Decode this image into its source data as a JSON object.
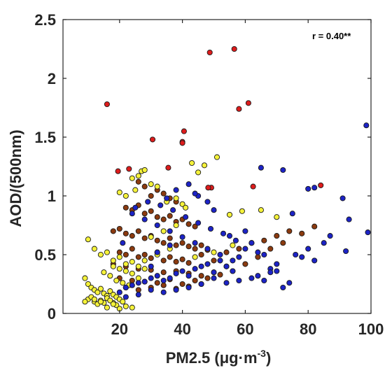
{
  "chart_data": {
    "type": "scatter",
    "title": "",
    "xlabel": "PM2.5 (μg·m",
    "xlabel_sup": "-3",
    "xlabel_close": ")",
    "ylabel": "AOD/(500nm)",
    "annotation": "r = 0.40**",
    "xlim": [
      2,
      100
    ],
    "ylim": [
      0,
      2.5
    ],
    "x_ticks": [
      20,
      40,
      60,
      80,
      100
    ],
    "x_tick_labels": [
      "20",
      "40",
      "60",
      "80",
      "100"
    ],
    "y_ticks": [
      0,
      0.5,
      1,
      1.5,
      2,
      2.5
    ],
    "y_tick_labels": [
      "0",
      "0.5",
      "1",
      "1.5",
      "2",
      "2.5"
    ],
    "grid": false,
    "legend": "none",
    "colors": {
      "red": "#dd1c1c",
      "brown": "#8b3a0f",
      "yellow": "#f5f23a",
      "blue": "#1c23c6",
      "outline": "#1a1a1a",
      "axis": "#262626"
    },
    "series": [
      {
        "color_key": "red",
        "x": [
          48.7,
          56.5,
          16,
          61,
          58,
          30.5,
          40.5,
          40,
          40,
          49.2,
          48.2,
          62.5,
          84,
          19.5,
          23,
          35.5
        ],
        "y": [
          2.22,
          2.25,
          1.78,
          1.79,
          1.74,
          1.48,
          1.55,
          1.46,
          1.45,
          1.07,
          1.07,
          1.08,
          1.09,
          1.21,
          1.23,
          1.24
        ]
      },
      {
        "color_key": "brown",
        "x": [
          26,
          28,
          30,
          32,
          34,
          36,
          38,
          22,
          24,
          26,
          28,
          30,
          32,
          34,
          36,
          38,
          40,
          42,
          44,
          18,
          20,
          22,
          24,
          26,
          28,
          30,
          32,
          34,
          36,
          38,
          40,
          42,
          44,
          46,
          48,
          20,
          22,
          24,
          26,
          28,
          30,
          32,
          34,
          36,
          38,
          40,
          42,
          46,
          50,
          54,
          58,
          62,
          66,
          70,
          74,
          78,
          82,
          18,
          22,
          26,
          30,
          34,
          38,
          42,
          46,
          50,
          54,
          60,
          64,
          68,
          72,
          20,
          24,
          28,
          32,
          36,
          40,
          44,
          48,
          52,
          56,
          22,
          26,
          30,
          34,
          38,
          42,
          46
        ],
        "y": [
          1.12,
          1.08,
          1.0,
          1.05,
          1.02,
          0.98,
          0.95,
          0.9,
          0.88,
          0.92,
          0.85,
          0.87,
          0.82,
          0.8,
          0.83,
          0.78,
          0.8,
          0.76,
          0.74,
          0.7,
          0.72,
          0.68,
          0.66,
          0.7,
          0.64,
          0.66,
          0.62,
          0.6,
          0.64,
          0.58,
          0.6,
          0.57,
          0.55,
          0.58,
          0.54,
          0.52,
          0.5,
          0.55,
          0.48,
          0.5,
          0.47,
          0.52,
          0.45,
          0.48,
          0.44,
          0.46,
          0.43,
          0.5,
          0.45,
          0.52,
          0.55,
          0.6,
          0.62,
          0.66,
          0.7,
          0.68,
          0.74,
          0.42,
          0.4,
          0.38,
          0.37,
          0.35,
          0.36,
          0.34,
          0.32,
          0.35,
          0.4,
          0.42,
          0.48,
          0.55,
          0.6,
          0.3,
          0.28,
          0.27,
          0.26,
          0.29,
          0.25,
          0.28,
          0.3,
          0.33,
          0.36,
          0.22,
          0.2,
          0.22,
          0.24,
          0.21,
          0.23,
          0.25
        ]
      },
      {
        "color_key": "yellow",
        "x": [
          27,
          28,
          26,
          24,
          30,
          32,
          25,
          20,
          22,
          43,
          47,
          51,
          45,
          35,
          38,
          40,
          41,
          55,
          59,
          65,
          70,
          10,
          12,
          14,
          16,
          18,
          20,
          22,
          24,
          26,
          28,
          9,
          10,
          11,
          12,
          13,
          14,
          15,
          16,
          17,
          18,
          19,
          10,
          12,
          14,
          16,
          18,
          20,
          9,
          11,
          13,
          15,
          17,
          19,
          21,
          12,
          14,
          16,
          18,
          20,
          22,
          24,
          26,
          15,
          17,
          19,
          21,
          23,
          18,
          20,
          22,
          24,
          28,
          32,
          36,
          44,
          50,
          56,
          30,
          34,
          38
        ],
        "y": [
          1.21,
          1.22,
          1.17,
          1.15,
          1.1,
          1.08,
          1.05,
          1.03,
          1.0,
          1.28,
          1.26,
          1.33,
          1.2,
          0.95,
          0.98,
          0.93,
          0.9,
          0.84,
          0.87,
          0.88,
          0.82,
          0.63,
          0.55,
          0.5,
          0.52,
          0.45,
          0.48,
          0.42,
          0.44,
          0.4,
          0.38,
          0.3,
          0.25,
          0.22,
          0.2,
          0.18,
          0.21,
          0.17,
          0.15,
          0.19,
          0.16,
          0.14,
          0.12,
          0.1,
          0.11,
          0.13,
          0.09,
          0.12,
          0.1,
          0.14,
          0.08,
          0.09,
          0.11,
          0.07,
          0.1,
          0.12,
          0.1,
          0.05,
          0.08,
          0.04,
          0.06,
          0.05,
          0.3,
          0.35,
          0.32,
          0.28,
          0.26,
          0.24,
          0.4,
          0.38,
          0.36,
          0.34,
          0.45,
          0.5,
          0.55,
          0.48,
          0.52,
          0.58,
          0.65,
          0.7,
          0.75
        ]
      },
      {
        "color_key": "blue",
        "x": [
          98.5,
          99,
          82,
          80,
          72,
          65,
          75,
          91,
          93,
          92,
          87,
          85,
          80,
          78,
          82,
          76,
          70,
          68,
          66,
          64,
          62,
          60,
          58,
          56,
          54,
          52,
          50,
          48,
          46,
          44,
          42,
          40,
          38,
          36,
          34,
          32,
          30,
          28,
          26,
          24,
          22,
          20,
          62,
          64,
          66,
          68,
          70,
          72,
          74,
          58,
          54,
          50,
          46,
          42,
          38,
          34,
          30,
          26,
          22,
          56,
          52,
          48,
          44,
          40,
          36,
          32,
          28,
          24,
          57,
          53,
          49,
          45,
          41,
          37,
          33,
          29,
          25,
          21,
          60,
          55,
          45,
          35,
          42,
          48,
          38,
          30,
          44,
          50,
          36,
          32
        ],
        "y": [
          1.6,
          0.69,
          1.07,
          1.06,
          1.22,
          1.24,
          0.85,
          0.98,
          0.8,
          0.53,
          0.66,
          0.6,
          0.55,
          0.48,
          0.45,
          0.5,
          0.42,
          0.38,
          0.5,
          0.52,
          0.6,
          0.55,
          0.48,
          0.36,
          0.4,
          0.45,
          0.35,
          0.42,
          0.4,
          0.38,
          0.32,
          0.36,
          0.34,
          0.3,
          0.28,
          0.32,
          0.3,
          0.27,
          0.26,
          0.24,
          0.22,
          0.18,
          0.3,
          0.32,
          0.28,
          0.35,
          0.36,
          0.22,
          0.26,
          0.28,
          0.26,
          0.3,
          0.25,
          0.22,
          0.2,
          0.18,
          0.2,
          0.16,
          0.14,
          0.45,
          0.5,
          0.55,
          0.6,
          0.65,
          0.7,
          0.75,
          0.8,
          0.85,
          0.62,
          0.68,
          0.72,
          0.77,
          0.82,
          0.88,
          0.92,
          0.95,
          0.9,
          0.6,
          0.7,
          0.66,
          1.0,
          0.98,
          1.1,
          0.95,
          1.05,
          0.4,
          1.02,
          0.88,
          0.58,
          0.52
        ]
      }
    ]
  }
}
